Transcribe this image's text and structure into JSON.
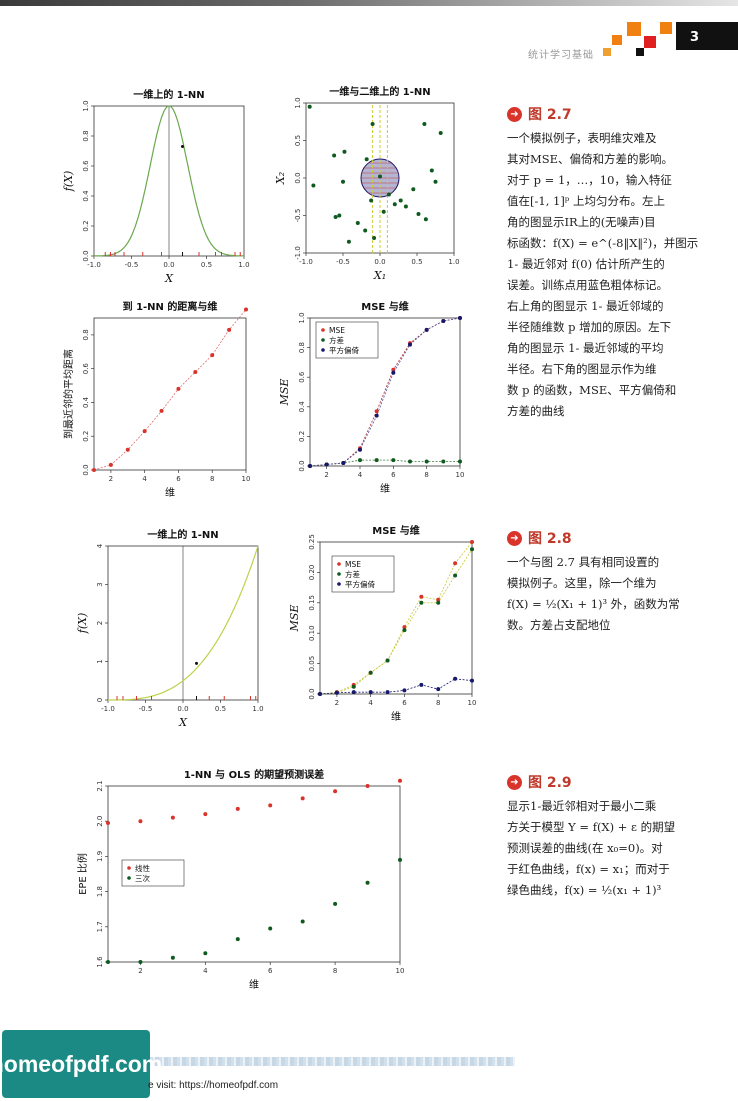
{
  "header": {
    "title": "统计学习基础",
    "page_number": "3"
  },
  "colors": {
    "red": "#d9342b",
    "green": "#0f5a1f",
    "navy": "#16186a",
    "yellow": "#cccc33",
    "accent": "#c0392b"
  },
  "captions": [
    {
      "label": "图 2.7",
      "icon": "arrow-icon",
      "lines": [
        "一个模拟例子，表明维灾难及",
        "其对MSE、偏倚和方差的影响。",
        "对于 p = 1，…，10，输入特征",
        "值在[-1, 1]ᵖ 上均匀分布。左上",
        "角的图显示IR上的(无噪声)目",
        "标函数：f(X) = e^(-8‖X‖²)，并图示",
        "1- 最近邻对 f(0) 估计所产生的",
        "误差。训练点用蓝色粗体标记。",
        "右上角的图显示 1- 最近邻域的",
        "半径随维数 p 增加的原因。左下",
        "角的图显示 1- 最近邻域的平均",
        "半径。右下角的图显示作为维",
        "数 p 的函数，MSE、平方偏倚和",
        "方差的曲线"
      ]
    },
    {
      "label": "图 2.8",
      "icon": "arrow-icon",
      "lines": [
        "一个与图 2.7 具有相同设置的",
        "模拟例子。这里，除一个维为",
        "f(X) = ½(X₁ + 1)³ 外，函数为常",
        "数。方差占支配地位"
      ]
    },
    {
      "label": "图 2.9",
      "icon": "arrow-icon",
      "lines": [
        "显示1-最近邻相对于最小二乘",
        "方关于模型 Y = f(X) + ε 的期望",
        "预测误差的曲线(在 x₀=0)。对",
        "于红色曲线，f(x) = x₁；而对于",
        "绿色曲线，f(x) = ½(x₁ + 1)³"
      ]
    }
  ],
  "chart_data": [
    {
      "type": "line",
      "title": "一维上的 1-NN",
      "xlabel": "X",
      "ylabel": "f(X)",
      "xlim": [
        -1.0,
        1.0
      ],
      "ylim": [
        0.0,
        1.0
      ],
      "xticks": [
        "-1.0",
        "-0.5",
        "0.0",
        "0.5",
        "1.0"
      ],
      "yticks": [
        "0.0",
        "0.2",
        "0.4",
        "0.6",
        "0.8",
        "1.0"
      ],
      "curve": "exp(-8x^2)",
      "highlight_point": [
        0.18,
        0.73
      ]
    },
    {
      "type": "scatter",
      "title": "一维与二维上的 1-NN",
      "xlabel": "X₁",
      "ylabel": "X₂",
      "xlim": [
        -1.0,
        1.0
      ],
      "ylim": [
        -1.0,
        1.0
      ],
      "xticks": [
        "-1.0",
        "-0.5",
        "0.0",
        "0.5",
        "1.0"
      ],
      "yticks": [
        "-1.0",
        "-0.5",
        "0.0",
        "0.5",
        "1.0"
      ],
      "x": [
        -0.95,
        -0.9,
        -0.62,
        -0.6,
        -0.55,
        -0.48,
        -0.5,
        -0.42,
        -0.3,
        -0.2,
        -0.18,
        -0.12,
        -0.1,
        0.0,
        0.12,
        0.2,
        0.28,
        0.35,
        0.45,
        0.52,
        0.6,
        0.7,
        0.82,
        0.75,
        0.62,
        -0.08,
        0.05
      ],
      "y": [
        0.95,
        -0.1,
        0.3,
        -0.52,
        -0.5,
        0.35,
        -0.05,
        -0.85,
        -0.6,
        -0.7,
        0.25,
        -0.3,
        0.72,
        0.02,
        -0.22,
        -0.35,
        -0.3,
        -0.38,
        -0.15,
        -0.48,
        0.72,
        0.1,
        0.6,
        -0.05,
        -0.55,
        -0.8,
        -0.45
      ]
    },
    {
      "type": "line",
      "title": "到 1-NN 的距离与维",
      "xlabel": "维",
      "ylabel": "到最近邻的平均距离",
      "xlim": [
        1,
        10
      ],
      "ylim": [
        0.0,
        0.9
      ],
      "xticks": [
        "2",
        "4",
        "6",
        "8",
        "10"
      ],
      "yticks": [
        "0.0",
        "0.2",
        "0.4",
        "0.6",
        "0.8"
      ],
      "x": [
        1,
        2,
        3,
        4,
        5,
        6,
        7,
        8,
        9,
        10
      ],
      "values": [
        0.0,
        0.03,
        0.12,
        0.23,
        0.35,
        0.48,
        0.58,
        0.68,
        0.83,
        0.95
      ]
    },
    {
      "type": "line",
      "title": "MSE 与维",
      "xlabel": "维",
      "ylabel": "MSE",
      "xlim": [
        1,
        10
      ],
      "ylim": [
        0.0,
        1.0
      ],
      "xticks": [
        "2",
        "4",
        "6",
        "8",
        "10"
      ],
      "yticks": [
        "0.0",
        "0.2",
        "0.4",
        "0.6",
        "0.8",
        "1.0"
      ],
      "legend": [
        "MSE",
        "方差",
        "平方偏倚"
      ],
      "legend_position": "top-left",
      "x": [
        1,
        2,
        3,
        4,
        5,
        6,
        7,
        8,
        9,
        10
      ],
      "series": [
        {
          "name": "MSE",
          "values": [
            0.0,
            0.01,
            0.02,
            0.12,
            0.37,
            0.65,
            0.83,
            0.92,
            0.98,
            1.0
          ]
        },
        {
          "name": "方差",
          "values": [
            0.0,
            0.01,
            0.02,
            0.04,
            0.04,
            0.04,
            0.03,
            0.03,
            0.03,
            0.03
          ]
        },
        {
          "name": "平方偏倚",
          "values": [
            0.0,
            0.01,
            0.02,
            0.11,
            0.34,
            0.63,
            0.82,
            0.92,
            0.98,
            1.0
          ]
        }
      ]
    },
    {
      "type": "line",
      "title": "一维上的 1-NN",
      "xlabel": "X",
      "ylabel": "f(X)",
      "xlim": [
        -1.0,
        1.0
      ],
      "ylim": [
        0,
        4
      ],
      "xticks": [
        "-1.0",
        "-0.5",
        "0.0",
        "0.5",
        "1.0"
      ],
      "yticks": [
        "0",
        "1",
        "2",
        "3",
        "4"
      ],
      "curve": "0.5*(x+1)^3",
      "highlight_point": [
        0.18,
        0.95
      ]
    },
    {
      "type": "line",
      "title": "MSE 与维",
      "xlabel": "维",
      "ylabel": "MSE",
      "xlim": [
        1,
        10
      ],
      "ylim": [
        0.0,
        0.25
      ],
      "xticks": [
        "2",
        "4",
        "6",
        "8",
        "10"
      ],
      "yticks": [
        "0.0",
        "0.05",
        "0.10",
        "0.15",
        "0.20",
        "0.25"
      ],
      "legend": [
        "MSE",
        "方差",
        "平方偏倚"
      ],
      "legend_position": "top-left",
      "x": [
        1,
        2,
        3,
        4,
        5,
        6,
        7,
        8,
        9,
        10
      ],
      "series": [
        {
          "name": "MSE",
          "values": [
            0.0,
            0.003,
            0.015,
            0.035,
            0.055,
            0.11,
            0.16,
            0.155,
            0.215,
            0.25
          ]
        },
        {
          "name": "方差",
          "values": [
            0.0,
            0.002,
            0.012,
            0.035,
            0.055,
            0.105,
            0.15,
            0.15,
            0.195,
            0.238
          ]
        },
        {
          "name": "平方偏倚",
          "values": [
            0.0,
            0.002,
            0.003,
            0.003,
            0.003,
            0.006,
            0.015,
            0.008,
            0.025,
            0.022
          ]
        }
      ]
    },
    {
      "type": "line",
      "title": "1-NN 与 OLS 的期望预测误差",
      "xlabel": "维",
      "ylabel": "EPE 比例",
      "xlim": [
        1,
        10
      ],
      "ylim": [
        1.6,
        2.1
      ],
      "xticks": [
        "2",
        "4",
        "6",
        "8",
        "10"
      ],
      "yticks": [
        "1.6",
        "1.7",
        "1.8",
        "1.9",
        "2.0",
        "2.1"
      ],
      "legend": [
        "线性",
        "三次"
      ],
      "legend_position": "left",
      "x": [
        1,
        2,
        3,
        4,
        5,
        6,
        7,
        8,
        9,
        10
      ],
      "series": [
        {
          "name": "线性",
          "values": [
            1.995,
            2.0,
            2.01,
            2.02,
            2.035,
            2.045,
            2.065,
            2.085,
            2.1,
            2.115
          ]
        },
        {
          "name": "三次",
          "values": [
            1.6,
            1.6,
            1.612,
            1.625,
            1.665,
            1.695,
            1.715,
            1.765,
            1.825,
            1.89
          ]
        }
      ]
    }
  ],
  "footer": {
    "logo": "homeofpdf.com",
    "visit": "e visit: https://homeofpdf.com"
  }
}
